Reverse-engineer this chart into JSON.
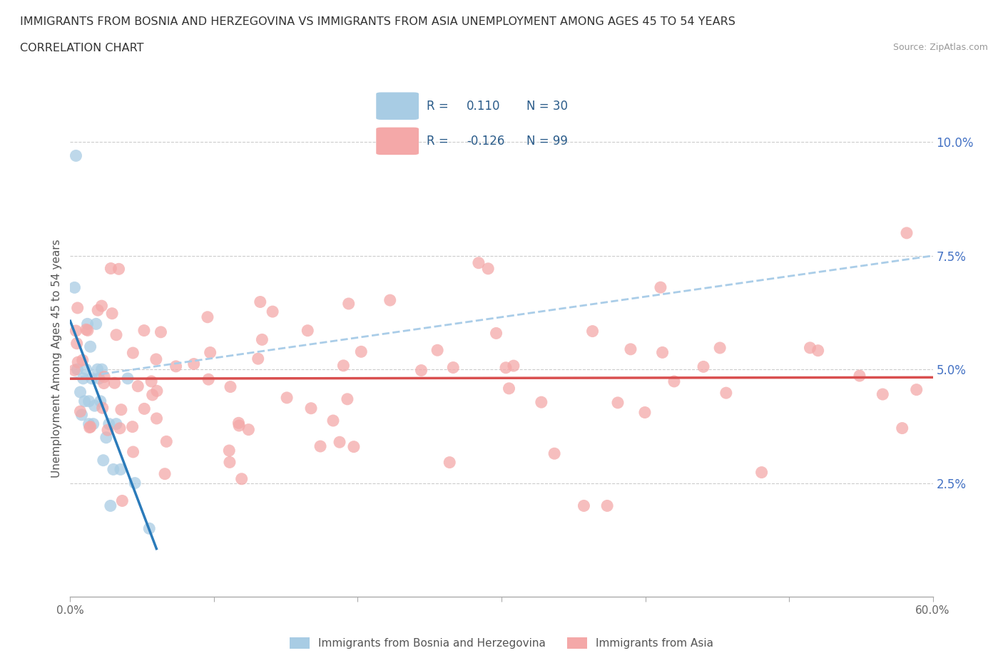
{
  "title_line1": "IMMIGRANTS FROM BOSNIA AND HERZEGOVINA VS IMMIGRANTS FROM ASIA UNEMPLOYMENT AMONG AGES 45 TO 54 YEARS",
  "title_line2": "CORRELATION CHART",
  "source": "Source: ZipAtlas.com",
  "ylabel_label": "Unemployment Among Ages 45 to 54 years",
  "x_min": 0.0,
  "x_max": 0.6,
  "y_min": 0.0,
  "y_max": 0.105,
  "legend1_label": "Immigrants from Bosnia and Herzegovina",
  "legend2_label": "Immigrants from Asia",
  "R1": 0.11,
  "N1": 30,
  "R2": -0.126,
  "N2": 99,
  "blue_scatter_color": "#a8cce4",
  "pink_scatter_color": "#f4a8a8",
  "blue_line_color": "#2b7bba",
  "pink_line_color": "#d94f4f",
  "blue_dashed_color": "#aacde8",
  "ytick_color": "#4472c4",
  "xtick_color": "#666666",
  "grid_color": "#cccccc",
  "title_color": "#333333",
  "source_color": "#999999",
  "legend_text_color": "#2b5c8a"
}
